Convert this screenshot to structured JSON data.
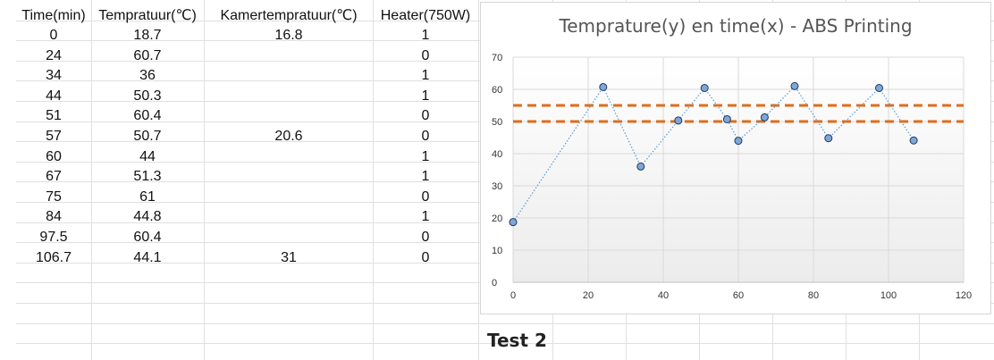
{
  "table": {
    "headers": [
      "Time(min)",
      "Tempratuur(℃)",
      "Kamertempratuur(℃)",
      "Heater(750W)"
    ],
    "rows": [
      [
        "0",
        "18.7",
        "16.8",
        "1"
      ],
      [
        "24",
        "60.7",
        "",
        "0"
      ],
      [
        "34",
        "36",
        "",
        "1"
      ],
      [
        "44",
        "50.3",
        "",
        "1"
      ],
      [
        "51",
        "60.4",
        "",
        "0"
      ],
      [
        "57",
        "50.7",
        "20.6",
        "0"
      ],
      [
        "60",
        "44",
        "",
        "1"
      ],
      [
        "67",
        "51.3",
        "",
        "1"
      ],
      [
        "75",
        "61",
        "",
        "0"
      ],
      [
        "84",
        "44.8",
        "",
        "1"
      ],
      [
        "97.5",
        "60.4",
        "",
        "0"
      ],
      [
        "106.7",
        "44.1",
        "31",
        "0"
      ]
    ]
  },
  "chart_data": {
    "type": "line",
    "title": "Temprature(y) en time(x) - ABS Printing",
    "x": [
      0,
      24,
      34,
      44,
      51,
      57,
      60,
      67,
      75,
      84,
      97.5,
      106.7
    ],
    "series": [
      {
        "values": [
          18.7,
          60.7,
          36,
          50.3,
          60.4,
          50.7,
          44,
          51.3,
          61,
          44.8,
          60.4,
          44.1
        ]
      }
    ],
    "reference_lines": [
      50,
      55
    ],
    "xlim": [
      0,
      120
    ],
    "ylim": [
      0,
      70
    ],
    "xticks": [
      0,
      20,
      40,
      60,
      80,
      100,
      120
    ],
    "yticks": [
      0,
      10,
      20,
      30,
      40,
      50,
      60,
      70
    ],
    "grid": true,
    "colors": {
      "marker": "#7fa7d6",
      "marker_edge": "#1f3a5f",
      "line": "#5b9bd5",
      "reference": "#e06c1a"
    }
  },
  "labels": {
    "test": "Test 2"
  }
}
